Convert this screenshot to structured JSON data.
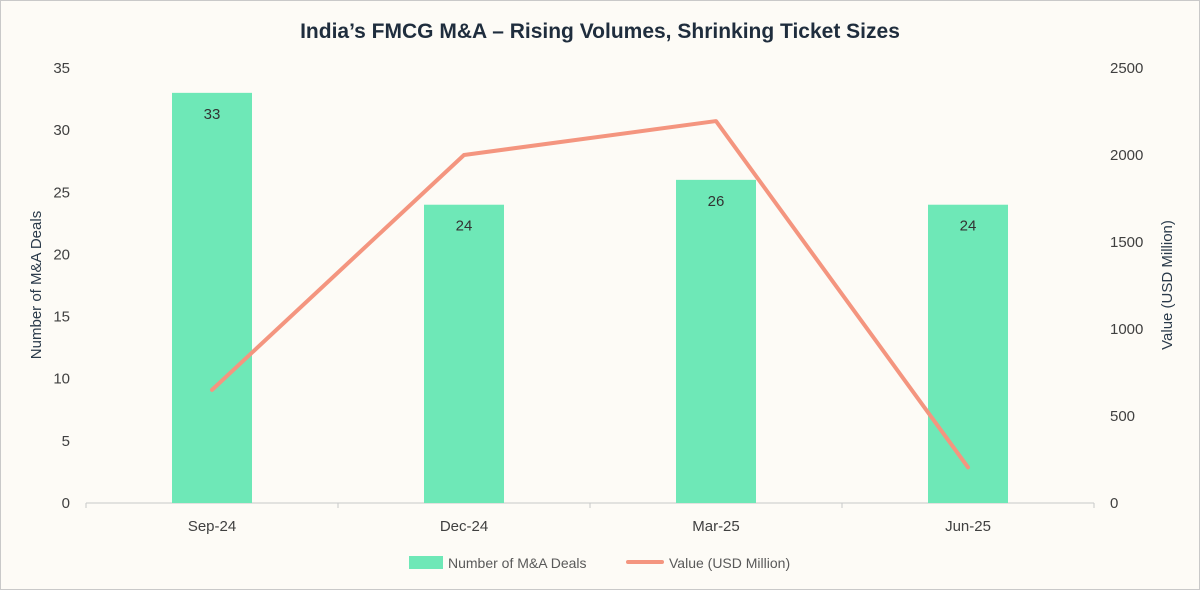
{
  "chart_data": {
    "type": "bar",
    "title": "India’s FMCG M&A – Rising Volumes, Shrinking Ticket Sizes",
    "categories": [
      "Sep-24",
      "Dec-24",
      "Mar-25",
      "Jun-25"
    ],
    "series": [
      {
        "name": "Number of M&A Deals",
        "type": "bar",
        "axis": "left",
        "values": [
          33,
          24,
          26,
          24
        ],
        "color": "#6ee8b7",
        "data_labels": [
          "33",
          "24",
          "26",
          "24"
        ]
      },
      {
        "name": "Value (USD Million)",
        "type": "line",
        "axis": "right",
        "values": [
          650,
          2000,
          2195,
          205
        ],
        "color": "#f4957f"
      }
    ],
    "ylabel": "Number of M&A Deals",
    "y2label": "Value (USD Million)",
    "ylim": [
      0,
      35
    ],
    "y2lim": [
      0,
      2500
    ],
    "yticks": [
      "0",
      "5",
      "10",
      "15",
      "20",
      "25",
      "30",
      "35"
    ],
    "y2ticks": [
      "0",
      "500",
      "1000",
      "1500",
      "2000",
      "2500"
    ],
    "grid": false,
    "legend_position": "bottom"
  }
}
